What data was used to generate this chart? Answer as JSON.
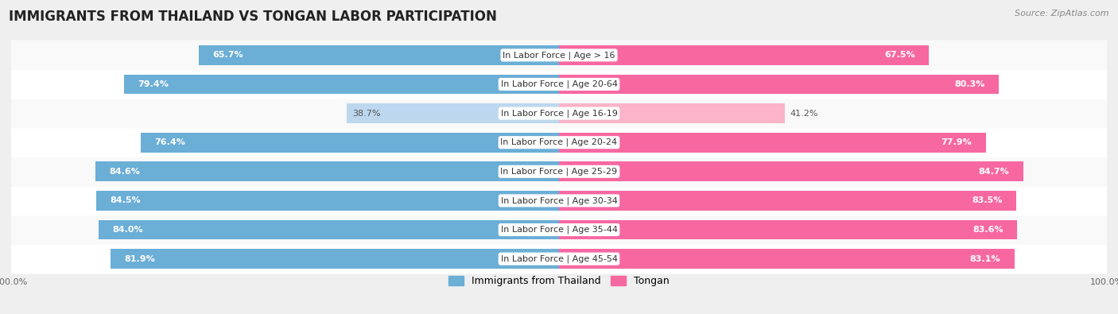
{
  "title": "IMMIGRANTS FROM THAILAND VS TONGAN LABOR PARTICIPATION",
  "source": "Source: ZipAtlas.com",
  "categories": [
    "In Labor Force | Age > 16",
    "In Labor Force | Age 20-64",
    "In Labor Force | Age 16-19",
    "In Labor Force | Age 20-24",
    "In Labor Force | Age 25-29",
    "In Labor Force | Age 30-34",
    "In Labor Force | Age 35-44",
    "In Labor Force | Age 45-54"
  ],
  "thailand_values": [
    65.7,
    79.4,
    38.7,
    76.4,
    84.6,
    84.5,
    84.0,
    81.9
  ],
  "tongan_values": [
    67.5,
    80.3,
    41.2,
    77.9,
    84.7,
    83.5,
    83.6,
    83.1
  ],
  "thailand_color": "#6baed6",
  "thailand_light_color": "#bdd7ee",
  "tongan_color": "#f768a1",
  "tongan_light_color": "#fbb4ca",
  "bar_height": 0.68,
  "bg_color": "#efefef",
  "row_bg_even": "#f9f9f9",
  "row_bg_odd": "#ffffff",
  "title_fontsize": 12,
  "label_fontsize": 8,
  "value_fontsize": 8,
  "legend_fontsize": 9,
  "source_fontsize": 8,
  "light_threshold": 50
}
